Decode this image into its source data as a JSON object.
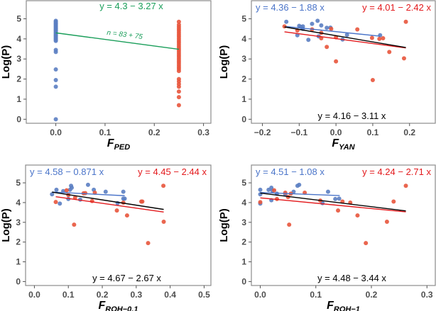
{
  "chart_data": [
    {
      "type": "scatter",
      "title": "",
      "ylabel": "Log(P)",
      "xlabel": {
        "main": "F",
        "sub": "PED"
      },
      "xlim": [
        -0.06,
        0.315
      ],
      "ylim": [
        -0.2,
        5.9
      ],
      "xticks": [
        "0.0",
        "0.1",
        "0.2",
        "0.3"
      ],
      "xtick_values": [
        0,
        0.1,
        0.2,
        0.3
      ],
      "yticks": [
        "0",
        "1",
        "2",
        "3",
        "4",
        "5"
      ],
      "ytick_values": [
        0,
        1,
        2,
        3,
        4,
        5
      ],
      "series": [
        {
          "name": "group-0",
          "color": "#5b7ec2",
          "points": [
            [
              0,
              4.9
            ],
            [
              0,
              4.85
            ],
            [
              0,
              4.8
            ],
            [
              0,
              4.75
            ],
            [
              0,
              4.7
            ],
            [
              0,
              4.65
            ],
            [
              0,
              4.6
            ],
            [
              0,
              4.55
            ],
            [
              0,
              4.5
            ],
            [
              0,
              4.45
            ],
            [
              0,
              4.4
            ],
            [
              0,
              4.35
            ],
            [
              0,
              4.3
            ],
            [
              0,
              4.25
            ],
            [
              0,
              4.2
            ],
            [
              0,
              4.15
            ],
            [
              0,
              4.1
            ],
            [
              0,
              4.05
            ],
            [
              0,
              4.0
            ],
            [
              0,
              3.95
            ],
            [
              0,
              3.9
            ],
            [
              0,
              3.45
            ],
            [
              0,
              3.35
            ],
            [
              0,
              2.48
            ],
            [
              0,
              1.95
            ],
            [
              0,
              1.62
            ],
            [
              0,
              0.0
            ]
          ]
        },
        {
          "name": "group-0.25",
          "color": "#e8553c",
          "points": [
            [
              0.25,
              4.85
            ],
            [
              0.25,
              4.7
            ],
            [
              0.25,
              4.6
            ],
            [
              0.25,
              4.5
            ],
            [
              0.25,
              4.4
            ],
            [
              0.25,
              4.3
            ],
            [
              0.25,
              4.2
            ],
            [
              0.25,
              4.1
            ],
            [
              0.25,
              4.0
            ],
            [
              0.25,
              3.9
            ],
            [
              0.25,
              3.8
            ],
            [
              0.25,
              3.7
            ],
            [
              0.25,
              3.6
            ],
            [
              0.25,
              3.5
            ],
            [
              0.25,
              3.4
            ],
            [
              0.25,
              3.3
            ],
            [
              0.25,
              3.2
            ],
            [
              0.25,
              3.1
            ],
            [
              0.25,
              3.0
            ],
            [
              0.25,
              2.9
            ],
            [
              0.25,
              2.8
            ],
            [
              0.25,
              2.7
            ],
            [
              0.25,
              2.6
            ],
            [
              0.25,
              2.5
            ],
            [
              0.25,
              2.4
            ],
            [
              0.25,
              2.0
            ],
            [
              0.25,
              1.88
            ],
            [
              0.25,
              1.75
            ],
            [
              0.25,
              1.62
            ],
            [
              0.25,
              1.38
            ],
            [
              0.25,
              1.1
            ],
            [
              0.25,
              0.7
            ]
          ]
        }
      ],
      "fits": [
        {
          "name": "overall",
          "color": "#1a9e5a",
          "intercept": 4.3,
          "slope": -3.27,
          "x_range": [
            0,
            0.25
          ],
          "label": "y = 4.3 − 3.27 x",
          "label_pos": "top-center"
        }
      ],
      "annotations": [
        {
          "text": "n = 83 + 75",
          "color": "#1a9e5a"
        }
      ]
    },
    {
      "type": "scatter",
      "ylabel": "Log(P)",
      "xlabel": {
        "main": "F",
        "sub": "YAN"
      },
      "xlim": [
        -0.23,
        0.27
      ],
      "ylim": [
        -0.2,
        5.9
      ],
      "xticks": [
        "−0.2",
        "−0.1",
        "0.0",
        "0.1",
        "0.2"
      ],
      "xtick_values": [
        -0.2,
        -0.1,
        0,
        0.1,
        0.2
      ],
      "yticks": [
        "0",
        "1",
        "2",
        "3",
        "4",
        "5"
      ],
      "ytick_values": [
        0,
        1,
        2,
        3,
        4,
        5
      ],
      "series": [
        {
          "name": "blue",
          "color": "#5b7ec2",
          "points": [
            [
              -0.135,
              4.85
            ],
            [
              -0.1,
              4.65
            ],
            [
              -0.095,
              4.6
            ],
            [
              -0.09,
              4.62
            ],
            [
              -0.105,
              4.18
            ],
            [
              -0.09,
              4.5
            ],
            [
              -0.075,
              3.95
            ],
            [
              -0.065,
              4.75
            ],
            [
              -0.05,
              4.9
            ],
            [
              -0.04,
              4.67
            ],
            [
              -0.025,
              4.55
            ],
            [
              -0.015,
              4.56
            ],
            [
              -0.047,
              4.13
            ],
            [
              0.03,
              4.2
            ],
            [
              0.018,
              3.97
            ],
            [
              0.12,
              4.18
            ]
          ]
        },
        {
          "name": "red",
          "color": "#e8553c",
          "points": [
            [
              -0.14,
              4.62
            ],
            [
              -0.105,
              4.42
            ],
            [
              -0.065,
              4.47
            ],
            [
              -0.04,
              4.3
            ],
            [
              -0.04,
              4.03
            ],
            [
              -0.025,
              3.6
            ],
            [
              -0.013,
              4.5
            ],
            [
              0,
              2.88
            ],
            [
              0,
              4.08
            ],
            [
              0.058,
              4.47
            ],
            [
              0.098,
              4.05
            ],
            [
              0.1,
              1.95
            ],
            [
              0.118,
              4.0
            ],
            [
              0.128,
              4.03
            ],
            [
              0.145,
              3.35
            ],
            [
              0.185,
              3.03
            ],
            [
              0.19,
              4.85
            ]
          ]
        }
      ],
      "fits": [
        {
          "name": "blue",
          "color": "#4a74c9",
          "intercept": 4.36,
          "slope": -1.88,
          "x_range": [
            -0.135,
            0.12
          ],
          "label": "y = 4.36 − 1.88 x",
          "label_pos": "top-left"
        },
        {
          "name": "red",
          "color": "#e3191c",
          "intercept": 4.01,
          "slope": -2.42,
          "x_range": [
            -0.14,
            0.19
          ],
          "label": "y = 4.01 − 2.42 x",
          "label_pos": "top-right"
        },
        {
          "name": "overall",
          "color": "#000000",
          "intercept": 4.16,
          "slope": -3.11,
          "x_range": [
            -0.14,
            0.19
          ],
          "label": "y = 4.16 − 3.11 x",
          "label_pos": "bottom-center"
        }
      ]
    },
    {
      "type": "scatter",
      "ylabel": "Log(P)",
      "xlabel": {
        "main": "F",
        "sub": "ROH−0.1"
      },
      "xlim": [
        -0.026,
        0.52
      ],
      "ylim": [
        -0.2,
        5.9
      ],
      "xticks": [
        "0.0",
        "0.1",
        "0.2",
        "0.3",
        "0.4",
        "0.5"
      ],
      "xtick_values": [
        0,
        0.1,
        0.2,
        0.3,
        0.4,
        0.5
      ],
      "yticks": [
        "0",
        "1",
        "2",
        "3",
        "4",
        "5"
      ],
      "ytick_values": [
        0,
        1,
        2,
        3,
        4,
        5
      ],
      "series": [
        {
          "name": "blue",
          "color": "#5b7ec2",
          "points": [
            [
              0.052,
              4.42
            ],
            [
              0.065,
              4.65
            ],
            [
              0.075,
              3.95
            ],
            [
              0.085,
              4.58
            ],
            [
              0.1,
              4.18
            ],
            [
              0.105,
              4.65
            ],
            [
              0.108,
              4.85
            ],
            [
              0.11,
              4.75
            ],
            [
              0.135,
              4.15
            ],
            [
              0.158,
              4.9
            ],
            [
              0.175,
              4.65
            ],
            [
              0.21,
              4.55
            ],
            [
              0.245,
              3.97
            ],
            [
              0.262,
              4.55
            ],
            [
              0.262,
              4.2
            ],
            [
              0.266,
              4.2
            ]
          ]
        },
        {
          "name": "red",
          "color": "#e8553c",
          "points": [
            [
              0.063,
              4.03
            ],
            [
              0.095,
              4.62
            ],
            [
              0.1,
              4.38
            ],
            [
              0.117,
              2.88
            ],
            [
              0.12,
              4.25
            ],
            [
              0.145,
              4.47
            ],
            [
              0.15,
              4.48
            ],
            [
              0.17,
              4.08
            ],
            [
              0.178,
              4.5
            ],
            [
              0.243,
              3.6
            ],
            [
              0.262,
              4.0
            ],
            [
              0.273,
              3.35
            ],
            [
              0.315,
              4.05
            ],
            [
              0.318,
              4.05
            ],
            [
              0.335,
              1.95
            ],
            [
              0.38,
              4.85
            ],
            [
              0.381,
              3.03
            ]
          ]
        }
      ],
      "fits": [
        {
          "name": "blue",
          "color": "#4a74c9",
          "intercept": 4.58,
          "slope": -0.871,
          "x_range": [
            0.052,
            0.266
          ],
          "label": "y = 4.58 − 0.871 x",
          "label_pos": "top-left"
        },
        {
          "name": "red",
          "color": "#e3191c",
          "intercept": 4.45,
          "slope": -2.44,
          "x_range": [
            0.063,
            0.381
          ],
          "label": "y = 4.45 − 2.44 x",
          "label_pos": "top-right"
        },
        {
          "name": "overall",
          "color": "#000000",
          "intercept": 4.67,
          "slope": -2.67,
          "x_range": [
            0.052,
            0.381
          ],
          "label": "y = 4.67 − 2.67 x",
          "label_pos": "bottom-center"
        }
      ]
    },
    {
      "type": "scatter",
      "ylabel": "Log(P)",
      "xlabel": {
        "main": "F",
        "sub": "ROH−1"
      },
      "xlim": [
        -0.016,
        0.315
      ],
      "ylim": [
        -0.2,
        5.9
      ],
      "xticks": [
        "0.0",
        "0.1",
        "0.2",
        "0.3"
      ],
      "xtick_values": [
        0,
        0.1,
        0.2,
        0.3
      ],
      "yticks": [
        "0",
        "1",
        "2",
        "3",
        "4",
        "5"
      ],
      "ytick_values": [
        0,
        1,
        2,
        3,
        4,
        5
      ],
      "series": [
        {
          "name": "blue",
          "color": "#5b7ec2",
          "points": [
            [
              0,
              4.65
            ],
            [
              0,
              4.42
            ],
            [
              0,
              3.95
            ],
            [
              0.015,
              4.65
            ],
            [
              0.02,
              4.75
            ],
            [
              0.02,
              4.12
            ],
            [
              0.022,
              4.6
            ],
            [
              0.03,
              4.45
            ],
            [
              0.045,
              4.42
            ],
            [
              0.06,
              4.55
            ],
            [
              0.067,
              4.85
            ],
            [
              0.07,
              4.9
            ],
            [
              0.112,
              3.97
            ],
            [
              0.122,
              4.55
            ],
            [
              0.135,
              4.18
            ],
            [
              0.142,
              4.2
            ]
          ]
        },
        {
          "name": "red",
          "color": "#e8553c",
          "points": [
            [
              0,
              4.02
            ],
            [
              0.025,
              4.62
            ],
            [
              0.03,
              4.18
            ],
            [
              0.045,
              4.5
            ],
            [
              0.05,
              4.28
            ],
            [
              0.052,
              2.88
            ],
            [
              0.055,
              4.45
            ],
            [
              0.08,
              4.5
            ],
            [
              0.108,
              4.1
            ],
            [
              0.14,
              3.6
            ],
            [
              0.148,
              4.05
            ],
            [
              0.162,
              4.0
            ],
            [
              0.175,
              3.35
            ],
            [
              0.19,
              1.95
            ],
            [
              0.228,
              3.03
            ],
            [
              0.24,
              4.05
            ],
            [
              0.262,
              4.85
            ]
          ]
        }
      ],
      "fits": [
        {
          "name": "blue",
          "color": "#4a74c9",
          "intercept": 4.51,
          "slope": -1.08,
          "x_range": [
            0,
            0.143
          ],
          "label": "y = 4.51 − 1.08 x",
          "label_pos": "top-left"
        },
        {
          "name": "red",
          "color": "#e3191c",
          "intercept": 4.24,
          "slope": -2.71,
          "x_range": [
            0,
            0.262
          ],
          "label": "y = 4.24 − 2.71 x",
          "label_pos": "top-right"
        },
        {
          "name": "overall",
          "color": "#000000",
          "intercept": 4.48,
          "slope": -3.44,
          "x_range": [
            0,
            0.262
          ],
          "label": "y = 4.48 − 3.44 x",
          "label_pos": "bottom-center"
        }
      ]
    }
  ]
}
